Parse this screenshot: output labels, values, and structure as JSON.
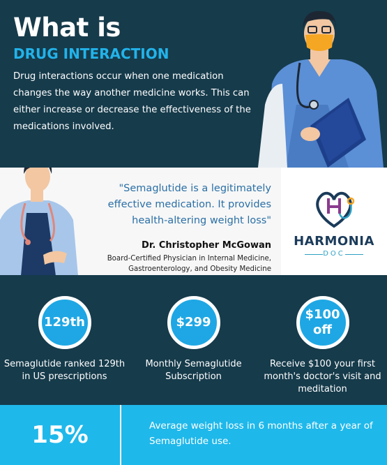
{
  "header": {
    "title": "What is",
    "subtitle": "DRUG INTERACTION",
    "description": "Drug interactions occur when one medication changes the way another medicine works. This can either increase or decrease the effectiveness of the medications involved."
  },
  "quote": {
    "text": "\"Semaglutide is a legitimately effective medication. It provides health-altering weight loss\"",
    "author": "Dr. Christopher McGowan",
    "credentials": "Board-Certified Physician in Internal Medicine, Gastroenterology, and Obesity Medicine"
  },
  "logo": {
    "name": "HARMONIA",
    "sub": "DOC",
    "icon": "stethoscope-heart-icon"
  },
  "stats": [
    {
      "value_line1": "129th",
      "value_line2": "",
      "label": "Semaglutide ranked 129th in US prescriptions"
    },
    {
      "value_line1": "$299",
      "value_line2": "",
      "label": "Monthly Semaglutide Subscription"
    },
    {
      "value_line1": "$100",
      "value_line2": "off",
      "label": "Receive $100 your first month's doctor's visit and meditation"
    }
  ],
  "highlight": {
    "value": "15%",
    "text": "Average weight loss in 6 months after a year of Semaglutide use."
  },
  "colors": {
    "dark_teal": "#163b4b",
    "accent_blue": "#22b3ea",
    "bright_blue": "#1fb8ea",
    "quote_blue": "#2a6fa5"
  }
}
